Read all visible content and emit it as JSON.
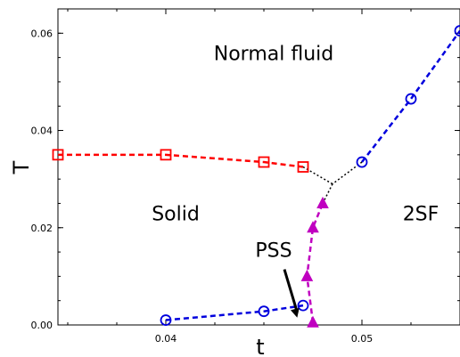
{
  "chart_data": {
    "type": "line",
    "xlabel": "t",
    "ylabel": "T",
    "xlim": [
      0.0345,
      0.055
    ],
    "ylim": [
      0.0,
      0.065
    ],
    "xticks": [
      {
        "value": 0.04,
        "label": "0.04"
      },
      {
        "value": 0.05,
        "label": "0.05"
      }
    ],
    "yticks": [
      {
        "value": 0.0,
        "label": "0.00"
      },
      {
        "value": 0.02,
        "label": "0.02"
      },
      {
        "value": 0.04,
        "label": "0.04"
      },
      {
        "value": 0.06,
        "label": "0.06"
      }
    ],
    "series": [
      {
        "marker": "square",
        "color": "#ff0000",
        "points": [
          [
            0.0345,
            0.035
          ],
          [
            0.04,
            0.035
          ],
          [
            0.045,
            0.0335
          ],
          [
            0.047,
            0.0325
          ]
        ]
      },
      {
        "marker": "circle",
        "color": "#0000dd",
        "points": [
          [
            0.05,
            0.0335
          ],
          [
            0.0525,
            0.0465
          ],
          [
            0.055,
            0.0605
          ]
        ]
      },
      {
        "marker": "circle",
        "color": "#0000dd",
        "points": [
          [
            0.04,
            0.001
          ],
          [
            0.045,
            0.0028
          ],
          [
            0.047,
            0.004
          ]
        ]
      },
      {
        "marker": "triangle",
        "color": "#c000c0",
        "points": [
          [
            0.0475,
            0.0005
          ],
          [
            0.0472,
            0.01
          ],
          [
            0.0475,
            0.02
          ],
          [
            0.048,
            0.025
          ]
        ]
      }
    ],
    "dotted_connectors": [
      [
        [
          0.047,
          0.0325
        ],
        [
          0.0485,
          0.029
        ]
      ],
      [
        [
          0.05,
          0.0335
        ],
        [
          0.0485,
          0.029
        ]
      ],
      [
        [
          0.048,
          0.025
        ],
        [
          0.0485,
          0.029
        ]
      ]
    ],
    "annotations": [
      {
        "text": "Normal fluid",
        "x": 0.0455,
        "y": 0.0545
      },
      {
        "text": "Solid",
        "x": 0.0405,
        "y": 0.0215
      },
      {
        "text": "2SF",
        "x": 0.053,
        "y": 0.0215
      },
      {
        "text": "PSS",
        "x": 0.0455,
        "y": 0.014,
        "arrow_to": [
          0.0467,
          0.0015
        ]
      }
    ]
  }
}
